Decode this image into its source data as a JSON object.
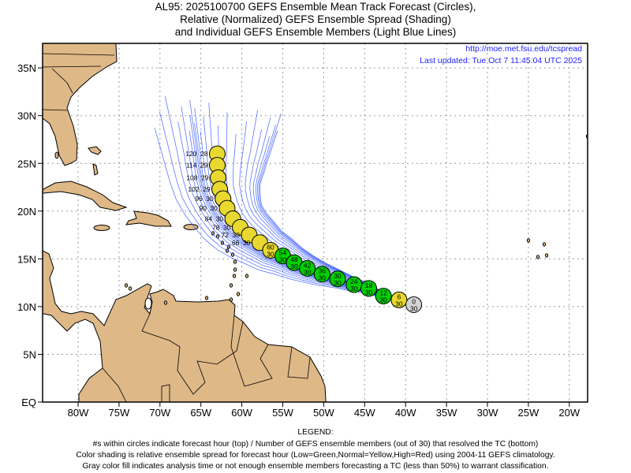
{
  "title": {
    "line1": "AL95: 2025100700 GEFS Ensemble Mean Track Forecast (Circles),",
    "line2": "Relative (Normalized) GEFS Ensemble Spread (Shading)",
    "line3": "and Individual GEFS Ensemble Members (Light Blue Lines)"
  },
  "source_url": "http://moe.met.fsu.edu/tcspread",
  "last_updated": "Last updated: Tue Oct 7 11:45:04 UTC 2025",
  "axes": {
    "lat_labels": [
      "EQ",
      "5N",
      "10N",
      "15N",
      "20N",
      "25N",
      "30N",
      "35N"
    ],
    "lat_values": [
      0,
      5,
      10,
      15,
      20,
      25,
      30,
      35
    ],
    "lon_labels": [
      "80W",
      "75W",
      "70W",
      "65W",
      "60W",
      "55W",
      "50W",
      "45W",
      "40W",
      "35W",
      "30W",
      "25W",
      "20W"
    ],
    "lon_values": [
      -80,
      -75,
      -70,
      -65,
      -60,
      -55,
      -50,
      -45,
      -40,
      -35,
      -30,
      -25,
      -20
    ]
  },
  "colors": {
    "low": "#00d000",
    "normal": "#e8d830",
    "high": "#ff0000",
    "gray": "#d3d3d3",
    "land": "#deb887",
    "members": "#3355ff"
  },
  "track": [
    {
      "hour": "0",
      "members": "30",
      "spread": "gray",
      "lat": 10.2,
      "lon": -39.0
    },
    {
      "hour": "6",
      "members": "30",
      "spread": "normal",
      "lat": 10.7,
      "lon": -40.8
    },
    {
      "hour": "12",
      "members": "30",
      "spread": "low",
      "lat": 11.1,
      "lon": -42.7
    },
    {
      "hour": "18",
      "members": "30",
      "spread": "low",
      "lat": 11.9,
      "lon": -44.5
    },
    {
      "hour": "24",
      "members": "30",
      "spread": "low",
      "lat": 12.3,
      "lon": -46.3
    },
    {
      "hour": "30",
      "members": "30",
      "spread": "low",
      "lat": 12.9,
      "lon": -48.3
    },
    {
      "hour": "36",
      "members": "30",
      "spread": "low",
      "lat": 13.4,
      "lon": -50.2
    },
    {
      "hour": "42",
      "members": "30",
      "spread": "low",
      "lat": 14.0,
      "lon": -52.0
    },
    {
      "hour": "48",
      "members": "30",
      "spread": "low",
      "lat": 14.6,
      "lon": -53.6
    },
    {
      "hour": "54",
      "members": "30",
      "spread": "low",
      "lat": 15.3,
      "lon": -55.0
    },
    {
      "hour": "60",
      "members": "30",
      "spread": "normal",
      "lat": 15.9,
      "lon": -56.5
    },
    {
      "hour": "66",
      "members": "30",
      "spread": "normal",
      "lat": 16.7,
      "lon": -57.8
    },
    {
      "hour": "72",
      "members": "30",
      "spread": "normal",
      "lat": 17.5,
      "lon": -59.1
    },
    {
      "hour": "78",
      "members": "30",
      "spread": "normal",
      "lat": 18.3,
      "lon": -60.2
    },
    {
      "hour": "84",
      "members": "30",
      "spread": "normal",
      "lat": 19.2,
      "lon": -61.1
    },
    {
      "hour": "90",
      "members": "30",
      "spread": "normal",
      "lat": 20.3,
      "lon": -61.8
    },
    {
      "hour": "96",
      "members": "30",
      "spread": "normal",
      "lat": 21.3,
      "lon": -62.3
    },
    {
      "hour": "102",
      "members": "29",
      "spread": "normal",
      "lat": 22.3,
      "lon": -62.7
    },
    {
      "hour": "108",
      "members": "29",
      "spread": "normal",
      "lat": 23.5,
      "lon": -62.9
    },
    {
      "hour": "114",
      "members": "29",
      "spread": "normal",
      "lat": 24.8,
      "lon": -63.0
    },
    {
      "hour": "120",
      "members": "28",
      "spread": "normal",
      "lat": 26.0,
      "lon": -63.0
    }
  ],
  "legend": {
    "heading": "LEGEND:",
    "line1": "#s within circles indicate forecast hour (top) / Number of GEFS ensemble members (out of 30) that resolved the TC (bottom)",
    "line2": "Color shading is relative ensemble spread for forecast hour (Low=Green,Normal=Yellow,High=Red) using 2004-11 GEFS climatology.",
    "line3": "Gray color fill indicates analysis time or not enough ensemble members forecasting a TC (less than 50%) to warrant classification."
  }
}
